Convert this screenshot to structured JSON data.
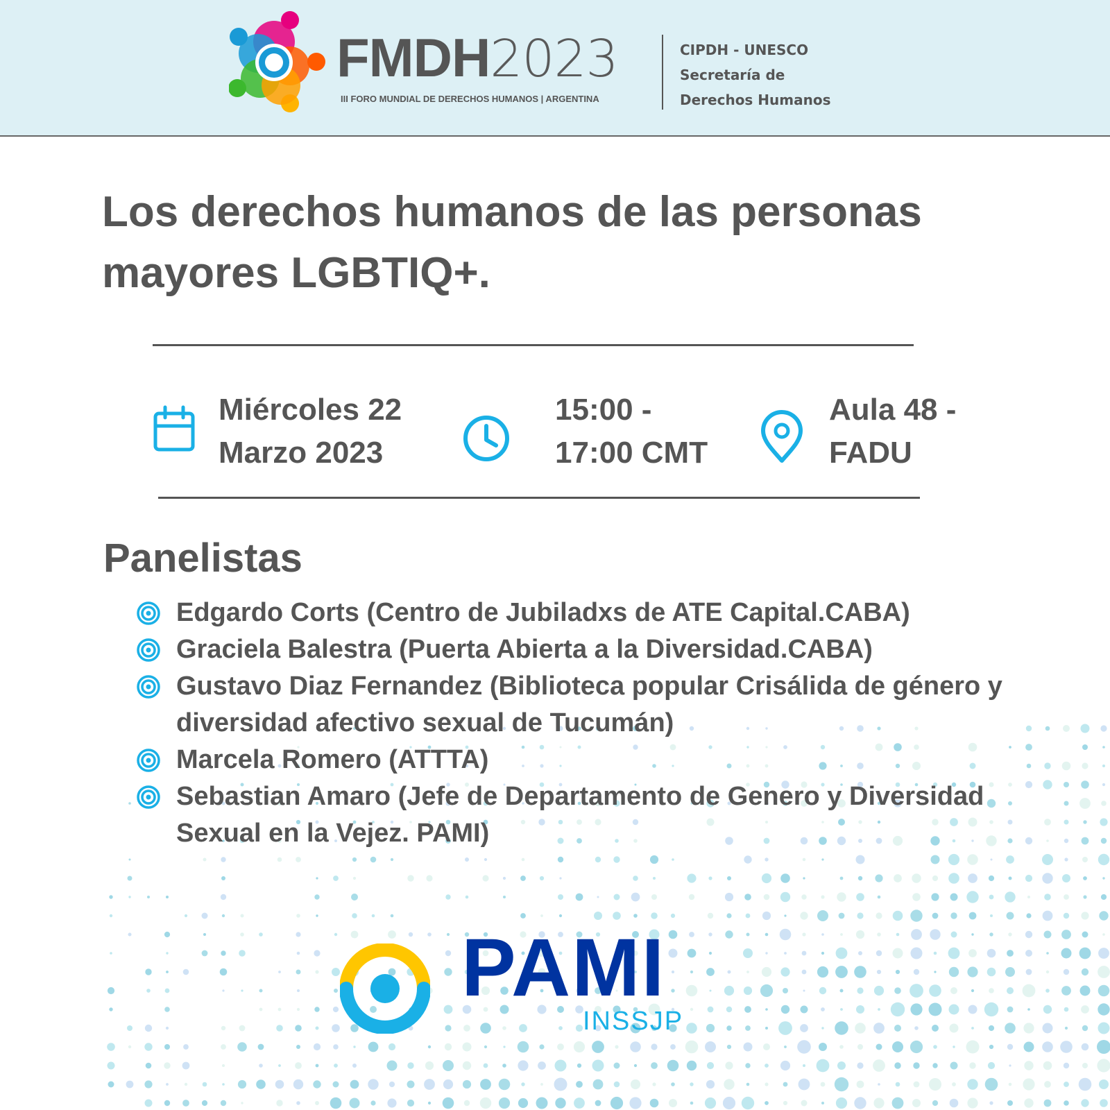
{
  "header": {
    "logo_name": "FMDH",
    "logo_year": "2023",
    "logo_subtitle": "III FORO MUNDIAL DE DERECHOS HUMANOS | ARGENTINA",
    "org_lines": [
      "CIPDH - UNESCO",
      "Secretaría de",
      "Derechos Humanos"
    ]
  },
  "title_lines": [
    "Los derechos humanos de las personas",
    "mayores LGBTIQ+."
  ],
  "event": {
    "date_lines": [
      "Miércoles 22",
      "Marzo 2023"
    ],
    "time_lines": [
      "15:00 -",
      "17:00 CMT"
    ],
    "place_lines": [
      "Aula 48 -",
      "FADU"
    ],
    "icons": [
      "calendar-icon",
      "clock-icon",
      "location-pin-icon"
    ]
  },
  "panel": {
    "heading": "Panelistas",
    "items": [
      "Edgardo Corts (Centro de Jubiladxs de ATE Capital.CABA)",
      "Graciela Balestra (Puerta Abierta a la Diversidad.CABA)",
      "Gustavo Diaz Fernandez (Biblioteca popular Crisálida de género y diversidad afectivo sexual de Tucumán)",
      "Marcela Romero (ATTTA)",
      "Sebastian Amaro (Jefe de Departamento de Genero y Diversidad Sexual en la Vejez. PAMI)"
    ]
  },
  "footer": {
    "brand": "PAMI",
    "brand_sub": "INSSJP"
  },
  "colors": {
    "accent": "#1ab0e6",
    "text": "#555555",
    "header_bg": "#ddf0f5",
    "pami_blue": "#0033a0",
    "pami_yellow": "#ffc600"
  }
}
